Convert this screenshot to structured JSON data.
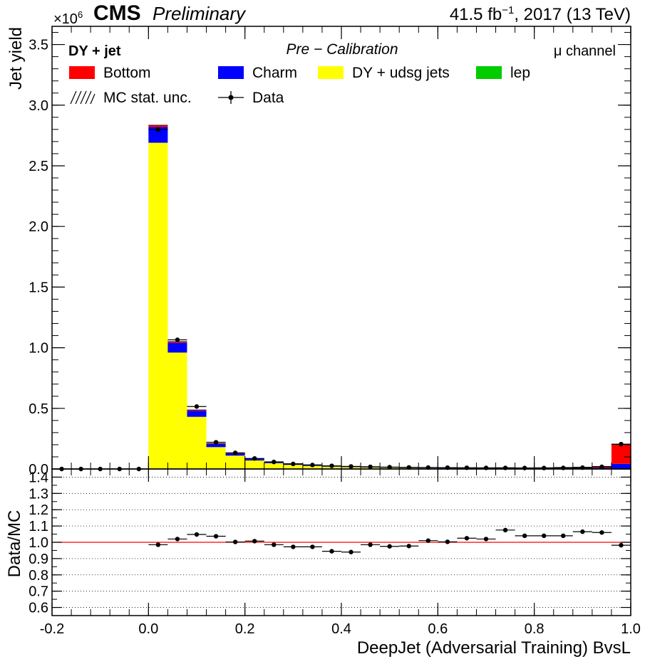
{
  "header": {
    "exponent_prefix": "×10",
    "exponent_power": "6",
    "cms": "CMS",
    "preliminary": "Preliminary",
    "lumi": "41.5 fb",
    "lumi_power": "−1",
    "lumi_suffix": ", 2017 (13 TeV)"
  },
  "annotations": {
    "process": "DY + jet",
    "stage": "Pre − Calibration",
    "channel": "μ channel"
  },
  "legend": {
    "bottom": "Bottom",
    "charm": "Charm",
    "light": "DY + udsg jets",
    "lep": "lep",
    "unc": "MC stat. unc.",
    "data": "Data"
  },
  "colors": {
    "bottom": "#ff0000",
    "charm": "#0000ff",
    "light": "#ffff00",
    "lep": "#00cc00",
    "ratio_line": "#ff0000"
  },
  "chart_data": {
    "type": "bar",
    "stacked": true,
    "title": "",
    "xlabel": "DeepJet (Adversarial Training) BvsL",
    "ylabel": "Jet yield",
    "y_multiplier": "×10^6",
    "xlim": [
      -0.2,
      1.0
    ],
    "ylim": [
      0,
      3.65
    ],
    "x_ticks": [
      "-0.2",
      "0.0",
      "0.2",
      "0.4",
      "0.6",
      "0.8",
      "1.0"
    ],
    "y_ticks": [
      "0.0",
      "0.5",
      "1.0",
      "1.5",
      "2.0",
      "2.5",
      "3.0",
      "3.5"
    ],
    "bin_edges": [
      -0.2,
      -0.16,
      -0.12,
      -0.08,
      -0.04,
      0.0,
      0.04,
      0.08,
      0.12,
      0.16,
      0.2,
      0.24,
      0.28,
      0.32,
      0.36,
      0.4,
      0.44,
      0.48,
      0.52,
      0.56,
      0.6,
      0.64,
      0.68,
      0.72,
      0.76,
      0.8,
      0.84,
      0.88,
      0.92,
      0.96,
      1.0
    ],
    "series": [
      {
        "name": "DY + udsg jets",
        "color": "#ffff00",
        "values": [
          0,
          0,
          0,
          0,
          0,
          2.69,
          0.96,
          0.43,
          0.18,
          0.11,
          0.07,
          0.048,
          0.034,
          0.025,
          0.019,
          0.015,
          0.012,
          0.01,
          0.008,
          0.007,
          0.006,
          0.005,
          0.004,
          0.004,
          0.003,
          0.003,
          0.003,
          0.002,
          0.002,
          0.002
        ]
      },
      {
        "name": "Charm",
        "color": "#0000ff",
        "values": [
          0,
          0,
          0,
          0,
          0,
          0.13,
          0.08,
          0.05,
          0.025,
          0.017,
          0.012,
          0.009,
          0.007,
          0.006,
          0.005,
          0.004,
          0.004,
          0.003,
          0.003,
          0.003,
          0.003,
          0.003,
          0.003,
          0.003,
          0.003,
          0.003,
          0.004,
          0.005,
          0.007,
          0.04
        ]
      },
      {
        "name": "Bottom",
        "color": "#ff0000",
        "values": [
          0,
          0,
          0,
          0,
          0,
          0.015,
          0.01,
          0.007,
          0.005,
          0.004,
          0.003,
          0.003,
          0.003,
          0.003,
          0.003,
          0.003,
          0.003,
          0.003,
          0.003,
          0.003,
          0.003,
          0.003,
          0.003,
          0.004,
          0.004,
          0.005,
          0.006,
          0.008,
          0.012,
          0.16
        ]
      },
      {
        "name": "lep",
        "color": "#00cc00",
        "values": [
          0,
          0,
          0,
          0,
          0,
          0,
          0,
          0,
          0,
          0,
          0,
          0,
          0,
          0,
          0,
          0,
          0,
          0,
          0,
          0,
          0,
          0,
          0,
          0,
          0,
          0,
          0,
          0,
          0,
          0
        ]
      }
    ],
    "data_points": {
      "name": "Data",
      "values": [
        0,
        0,
        0,
        0,
        0,
        2.8,
        1.065,
        0.515,
        0.22,
        0.133,
        0.087,
        0.058,
        0.042,
        0.033,
        0.026,
        0.021,
        0.018,
        0.015,
        0.013,
        0.012,
        0.011,
        0.01,
        0.009,
        0.009,
        0.008,
        0.008,
        0.009,
        0.011,
        0.018,
        0.205
      ]
    },
    "ratio": {
      "ylabel": "Data/MC",
      "ylim": [
        0.55,
        1.45
      ],
      "y_ticks": [
        "0.6",
        "0.7",
        "0.8",
        "0.9",
        "1.0",
        "1.1",
        "1.2",
        "1.3",
        "1.4"
      ],
      "values": [
        null,
        null,
        null,
        null,
        null,
        0.985,
        1.02,
        1.048,
        1.037,
        1.002,
        1.007,
        0.985,
        0.972,
        0.972,
        0.945,
        0.94,
        0.985,
        0.975,
        0.977,
        1.01,
        1.003,
        1.025,
        1.02,
        1.075,
        1.04,
        1.04,
        1.04,
        1.065,
        1.06,
        0.982
      ],
      "grid": "dotted"
    }
  }
}
